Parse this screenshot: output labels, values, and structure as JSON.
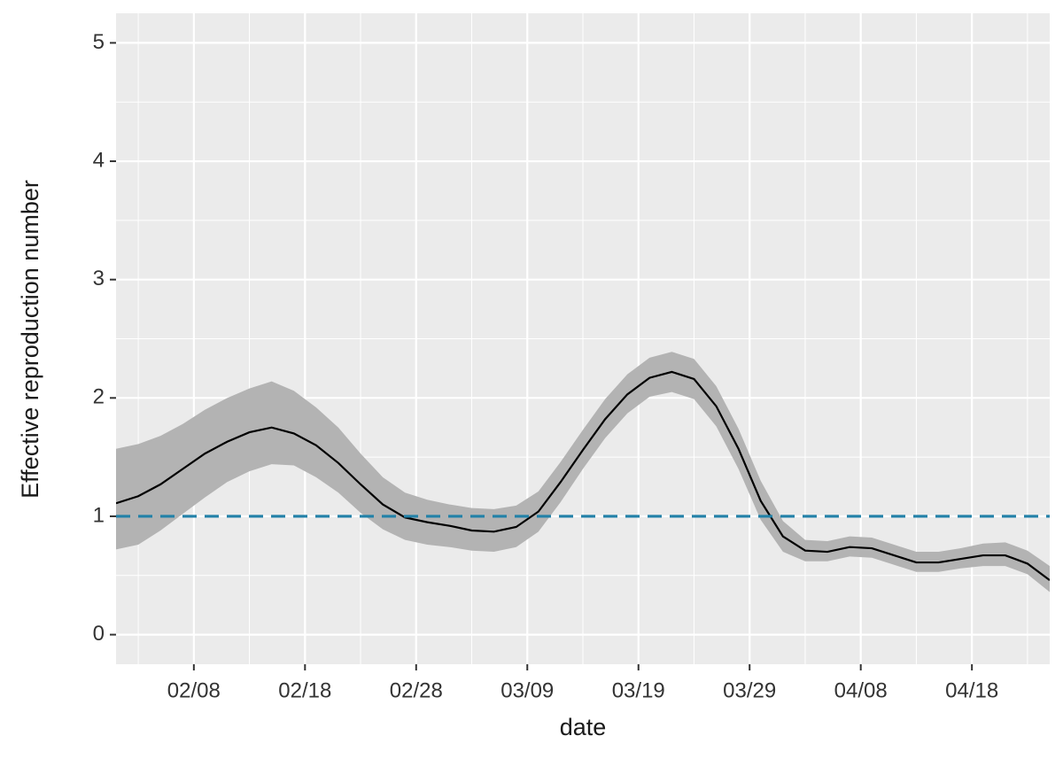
{
  "chart_data": {
    "type": "line",
    "x_label": "date",
    "y_label": "Effective reproduction number",
    "x": [
      "02/01",
      "02/03",
      "02/05",
      "02/07",
      "02/09",
      "02/11",
      "02/13",
      "02/15",
      "02/17",
      "02/19",
      "02/21",
      "02/23",
      "02/25",
      "02/27",
      "02/29",
      "03/02",
      "03/04",
      "03/06",
      "03/08",
      "03/10",
      "03/12",
      "03/14",
      "03/16",
      "03/18",
      "03/20",
      "03/22",
      "03/24",
      "03/26",
      "03/28",
      "03/30",
      "04/01",
      "04/03",
      "04/05",
      "04/07",
      "04/09",
      "04/11",
      "04/13",
      "04/15",
      "04/17",
      "04/19",
      "04/21",
      "04/23",
      "04/25"
    ],
    "values": [
      1.11,
      1.17,
      1.27,
      1.4,
      1.53,
      1.63,
      1.71,
      1.75,
      1.7,
      1.6,
      1.45,
      1.27,
      1.1,
      0.99,
      0.95,
      0.92,
      0.88,
      0.87,
      0.91,
      1.04,
      1.29,
      1.56,
      1.82,
      2.03,
      2.17,
      2.22,
      2.16,
      1.93,
      1.57,
      1.13,
      0.83,
      0.71,
      0.7,
      0.74,
      0.73,
      0.67,
      0.61,
      0.61,
      0.64,
      0.67,
      0.67,
      0.6,
      0.46
    ],
    "lower": [
      0.72,
      0.76,
      0.88,
      1.02,
      1.16,
      1.29,
      1.38,
      1.44,
      1.43,
      1.33,
      1.2,
      1.03,
      0.89,
      0.8,
      0.76,
      0.74,
      0.71,
      0.7,
      0.74,
      0.87,
      1.12,
      1.4,
      1.66,
      1.87,
      2.01,
      2.05,
      1.99,
      1.76,
      1.4,
      0.97,
      0.7,
      0.62,
      0.62,
      0.66,
      0.65,
      0.59,
      0.53,
      0.53,
      0.56,
      0.58,
      0.58,
      0.51,
      0.36
    ],
    "upper": [
      1.57,
      1.61,
      1.68,
      1.78,
      1.9,
      2.0,
      2.08,
      2.14,
      2.06,
      1.92,
      1.75,
      1.53,
      1.33,
      1.2,
      1.14,
      1.1,
      1.07,
      1.06,
      1.09,
      1.21,
      1.46,
      1.73,
      1.99,
      2.2,
      2.34,
      2.39,
      2.33,
      2.1,
      1.74,
      1.3,
      0.96,
      0.8,
      0.79,
      0.83,
      0.82,
      0.76,
      0.7,
      0.7,
      0.73,
      0.77,
      0.78,
      0.71,
      0.58
    ],
    "color": "#000000",
    "band_color": "#b3b3b3",
    "reference_line": {
      "value": 1,
      "color": "#2281a8"
    },
    "xlim": [
      "02/01",
      "04/25"
    ],
    "xticks": [
      "02/08",
      "02/18",
      "02/28",
      "03/09",
      "03/19",
      "03/29",
      "04/08",
      "04/18"
    ],
    "ylim": [
      -0.25,
      5.25
    ],
    "yticks": [
      0,
      1,
      2,
      3,
      4,
      5
    ],
    "grid": true
  }
}
